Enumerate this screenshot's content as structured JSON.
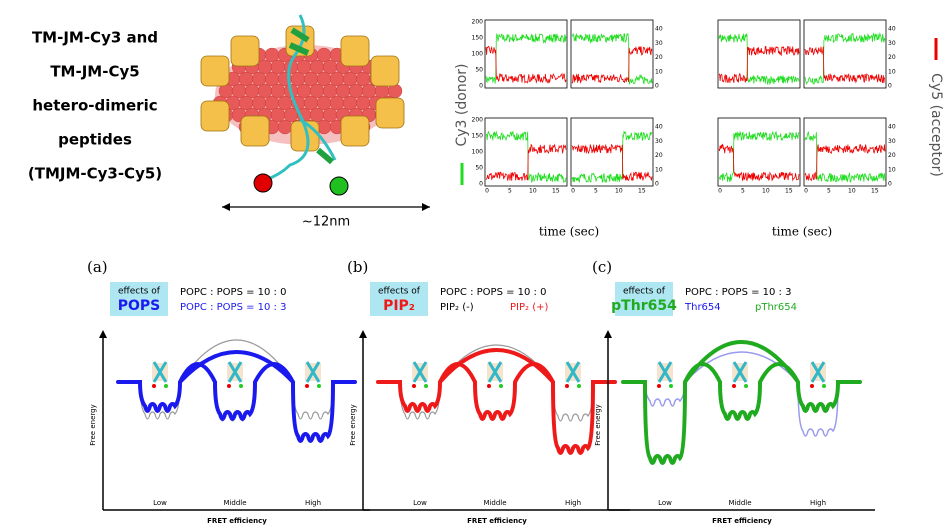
{
  "header": {
    "construct_label": [
      "TM-JM-Cy3 and",
      "TM-JM-Cy5",
      "hetero-dimeric",
      "peptides",
      "(TMJM-Cy3-Cy5)"
    ],
    "scale_label": "~12nm"
  },
  "traces": {
    "y_label": "Cy3 (donor)",
    "y2_label": "Cy5 (acceptor)",
    "x_label": "time (sec)",
    "yticks": [
      0,
      50,
      100,
      150,
      200
    ],
    "y2ticks": [
      0,
      10,
      20,
      30,
      40
    ],
    "xticks": [
      0,
      5,
      10,
      15
    ]
  },
  "panels": [
    {
      "letter": "(a)",
      "effect_prefix": "effects of",
      "effect": "POPS",
      "legend": [
        "POPC : POPS = 10 : 0",
        "POPC : POPS = 10 : 3"
      ]
    },
    {
      "letter": "(b)",
      "effect_prefix": "effects of",
      "effect": "PIP₂",
      "legend": [
        "POPC : POPS = 10 : 0",
        "PIP₂ (-)",
        "PIP₂ (+)"
      ]
    },
    {
      "letter": "(c)",
      "effect_prefix": "effects of",
      "effect": "pThr654",
      "legend": [
        "POPC : POPS = 10 : 3",
        "Thr654",
        "pThr654"
      ]
    }
  ],
  "energy_axes": {
    "y_label": "Free energy",
    "x_label": "FRET efficiency",
    "states": [
      "Low",
      "Middle",
      "High"
    ]
  }
}
